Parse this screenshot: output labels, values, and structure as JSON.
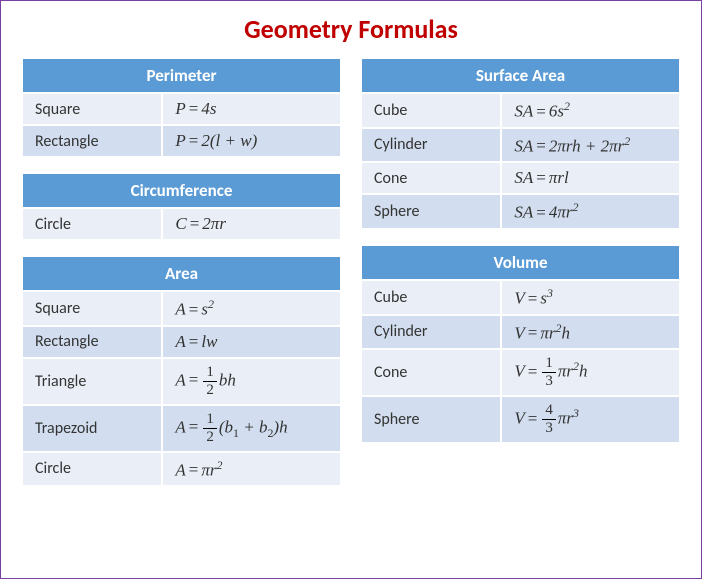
{
  "title": "Geometry Formulas",
  "colors": {
    "header_bg": "#5b9bd5",
    "header_text": "#ffffff",
    "row_light": "#eaeff7",
    "row_dark": "#d2deef",
    "title_color": "#c00000",
    "border": "#7b3f9d"
  },
  "tables": {
    "perimeter": {
      "heading": "Perimeter",
      "rows": [
        {
          "shape": "Square",
          "formula_html": "<i>P</i><span class='eq'>=</span>4<i>s</i>"
        },
        {
          "shape": "Rectangle",
          "formula_html": "<i>P</i><span class='eq'>=</span>2(<i>l</i> + <i>w</i>)"
        }
      ]
    },
    "circumference": {
      "heading": "Circumference",
      "rows": [
        {
          "shape": "Circle",
          "formula_html": "<i>C</i><span class='eq'>=</span>2<i>πr</i>"
        }
      ]
    },
    "area": {
      "heading": "Area",
      "rows": [
        {
          "shape": "Square",
          "formula_html": "<i>A</i><span class='eq'>=</span><i>s</i><sup>2</sup>"
        },
        {
          "shape": "Rectangle",
          "formula_html": "<i>A</i><span class='eq'>=</span><i>lw</i>"
        },
        {
          "shape": "Triangle",
          "formula_html": "<i>A</i><span class='eq'>=</span><span class='frac'><span class='num'>1</span><span class='den'>2</span></span><i>bh</i>",
          "tall": true
        },
        {
          "shape": "Trapezoid",
          "formula_html": "<i>A</i><span class='eq'>=</span><span class='frac'><span class='num'>1</span><span class='den'>2</span></span>(<i>b</i><sub>1</sub> + <i>b</i><sub>2</sub>)<i>h</i>",
          "tall": true
        },
        {
          "shape": "Circle",
          "formula_html": "<i>A</i><span class='eq'>=</span><i>πr</i><sup>2</sup>"
        }
      ]
    },
    "surface_area": {
      "heading": "Surface Area",
      "rows": [
        {
          "shape": "Cube",
          "formula_html": "<i>SA</i><span class='eq'>=</span>6<i>s</i><sup>2</sup>"
        },
        {
          "shape": "Cylinder",
          "formula_html": "<i>SA</i><span class='eq'>=</span>2<i>πrh</i> + 2<i>πr</i><sup>2</sup>"
        },
        {
          "shape": "Cone",
          "formula_html": "<i>SA</i><span class='eq'>=</span><i>πrl</i>"
        },
        {
          "shape": "Sphere",
          "formula_html": "<i>SA</i><span class='eq'>=</span>4<i>πr</i><sup>2</sup>"
        }
      ]
    },
    "volume": {
      "heading": "Volume",
      "rows": [
        {
          "shape": "Cube",
          "formula_html": "<i>V</i><span class='eq'>=</span><i>s</i><sup>3</sup>"
        },
        {
          "shape": "Cylinder",
          "formula_html": "<i>V</i><span class='eq'>=</span><i>πr</i><sup>2</sup><i>h</i>"
        },
        {
          "shape": "Cone",
          "formula_html": "<i>V</i><span class='eq'>=</span><span class='frac'><span class='num'>1</span><span class='den'>3</span></span><i>πr</i><sup>2</sup><i>h</i>",
          "tall": true
        },
        {
          "shape": "Sphere",
          "formula_html": "<i>V</i><span class='eq'>=</span><span class='frac'><span class='num'>4</span><span class='den'>3</span></span><i>πr</i><sup>3</sup>",
          "tall": true
        }
      ]
    }
  }
}
